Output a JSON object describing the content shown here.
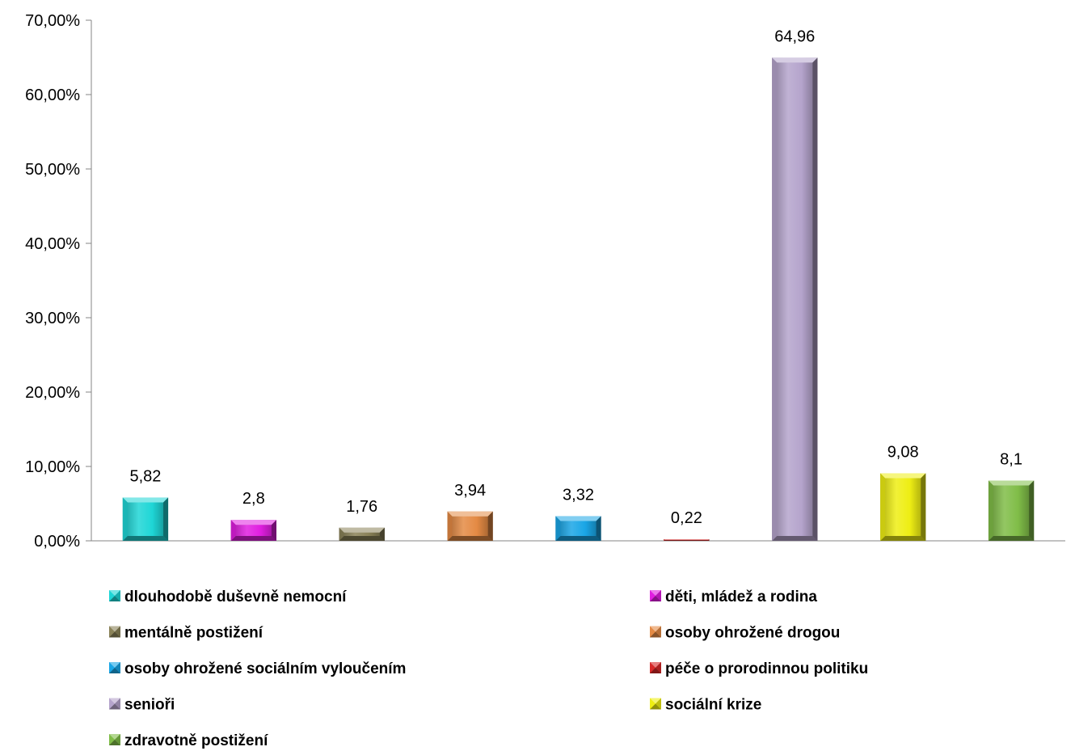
{
  "chart_data": {
    "type": "bar",
    "title": "",
    "xlabel": "",
    "ylabel": "",
    "ylim": [
      0,
      70
    ],
    "y_ticks": [
      "0,00%",
      "10,00%",
      "20,00%",
      "30,00%",
      "40,00%",
      "50,00%",
      "60,00%",
      "70,00%"
    ],
    "grid": false,
    "legend_position": "bottom",
    "series": [
      {
        "name": "dlouhodobě duševně nemocní",
        "value": 5.82,
        "label": "5,82",
        "color": "#1ed6d6"
      },
      {
        "name": "děti, mládež a rodina",
        "value": 2.8,
        "label": "2,8",
        "color": "#e01ee0"
      },
      {
        "name": "mentálně postižení",
        "value": 1.76,
        "label": "1,76",
        "color": "#8a8258"
      },
      {
        "name": "osoby ohrožené drogou",
        "value": 3.94,
        "label": "3,94",
        "color": "#e48a44"
      },
      {
        "name": "osoby ohrožené sociálním vyloučením",
        "value": 3.32,
        "label": "3,32",
        "color": "#1aa6e6"
      },
      {
        "name": "péče o prorodinnou politiku",
        "value": 0.22,
        "label": "0,22",
        "color": "#d62828"
      },
      {
        "name": "senioři",
        "value": 64.96,
        "label": "64,96",
        "color": "#b5a4cc"
      },
      {
        "name": "sociální krize",
        "value": 9.08,
        "label": "9,08",
        "color": "#eeee14"
      },
      {
        "name": "zdravotně postižení",
        "value": 8.1,
        "label": "8,1",
        "color": "#80bd48"
      }
    ]
  }
}
